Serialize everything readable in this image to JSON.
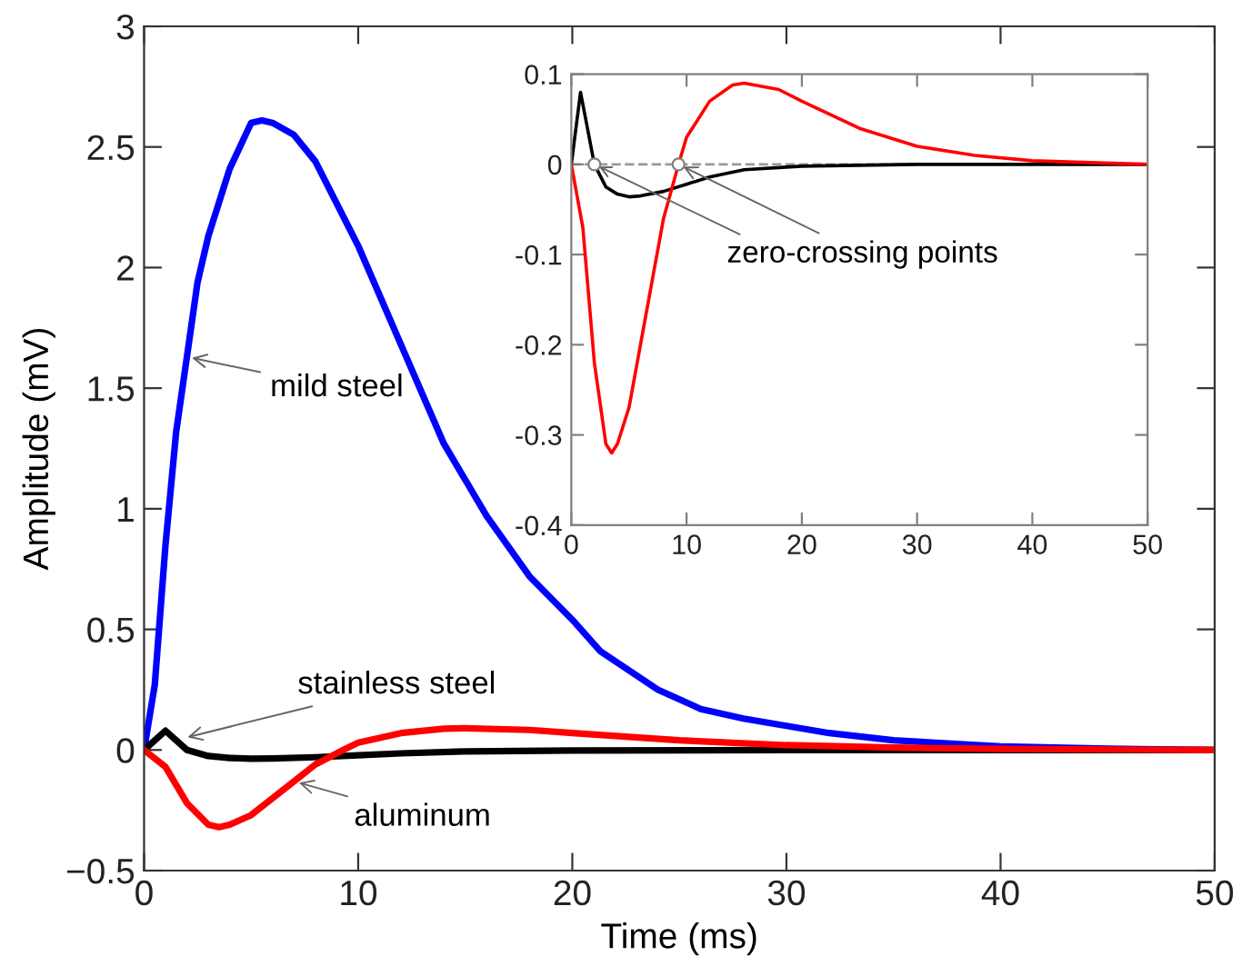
{
  "chart_data": [
    {
      "type": "line",
      "xlabel": "Time (ms)",
      "ylabel": "Amplitude (mV)",
      "xlim": [
        0,
        50
      ],
      "ylim": [
        -0.5,
        3
      ],
      "xticks": [
        0,
        10,
        20,
        30,
        40,
        50
      ],
      "yticks": [
        {
          "value": -0.5,
          "label": "−0.5"
        },
        0,
        0.5,
        1,
        1.5,
        2,
        2.5,
        3
      ],
      "grid": false,
      "series": [
        {
          "name": "mild steel",
          "color": "#0000ff",
          "x": [
            0,
            0.5,
            1,
            1.5,
            2,
            2.5,
            3,
            4,
            5,
            5.5,
            6,
            7,
            8,
            10,
            12,
            14,
            16,
            18,
            20,
            21.3,
            24,
            26,
            28,
            30,
            32,
            35,
            40,
            45,
            50
          ],
          "values": [
            0,
            0.27,
            0.85,
            1.32,
            1.63,
            1.94,
            2.13,
            2.41,
            2.6,
            2.61,
            2.6,
            2.55,
            2.44,
            2.09,
            1.68,
            1.27,
            0.97,
            0.72,
            0.54,
            0.41,
            0.25,
            0.17,
            0.13,
            0.1,
            0.07,
            0.04,
            0.015,
            0.005,
            0
          ]
        },
        {
          "name": "stainless steel",
          "color": "#000000",
          "x": [
            0,
            1,
            2,
            3,
            4,
            5,
            6,
            8,
            10,
            12,
            15,
            20,
            30,
            50
          ],
          "values": [
            0,
            0.08,
            0,
            -0.025,
            -0.033,
            -0.036,
            -0.035,
            -0.03,
            -0.022,
            -0.014,
            -0.006,
            -0.002,
            0,
            0
          ]
        },
        {
          "name": "aluminum",
          "color": "#ff0000",
          "x": [
            0,
            1,
            2,
            3,
            3.5,
            4,
            5,
            6,
            7,
            8,
            9.3,
            10,
            12,
            14,
            15,
            18,
            20,
            25,
            30,
            35,
            40,
            50
          ],
          "values": [
            0,
            -0.07,
            -0.22,
            -0.31,
            -0.32,
            -0.31,
            -0.27,
            -0.2,
            -0.13,
            -0.06,
            0,
            0.03,
            0.07,
            0.088,
            0.09,
            0.083,
            0.07,
            0.04,
            0.02,
            0.01,
            0.004,
            0
          ]
        }
      ],
      "legend": false
    },
    {
      "type": "line",
      "xlim": [
        0,
        50
      ],
      "ylim": [
        -0.4,
        0.1
      ],
      "xticks": [
        0,
        10,
        20,
        30,
        40,
        50
      ],
      "yticks": [
        -0.4,
        -0.3,
        -0.2,
        -0.1,
        0,
        0.1
      ],
      "grid": false,
      "legend": false,
      "series": [
        {
          "color": "#000000",
          "x": [
            0,
            0.8,
            2,
            3,
            4,
            5,
            6,
            8,
            10,
            12,
            15,
            20,
            30,
            50
          ],
          "values": [
            0,
            0.08,
            0,
            -0.025,
            -0.033,
            -0.036,
            -0.035,
            -0.03,
            -0.022,
            -0.014,
            -0.006,
            -0.002,
            0,
            0
          ]
        },
        {
          "color": "#ff0000",
          "x": [
            0,
            1,
            2,
            3,
            3.5,
            4,
            5,
            6,
            7,
            8,
            9.3,
            10,
            12,
            14,
            15,
            18,
            20,
            25,
            30,
            35,
            40,
            50
          ],
          "values": [
            0,
            -0.07,
            -0.22,
            -0.31,
            -0.32,
            -0.31,
            -0.27,
            -0.2,
            -0.13,
            -0.06,
            0,
            0.03,
            0.07,
            0.088,
            0.09,
            0.083,
            0.07,
            0.04,
            0.02,
            0.01,
            0.004,
            0
          ]
        },
        {
          "type": "scatter",
          "color": "#808080",
          "marker": "circle",
          "x": [
            2,
            9.3
          ],
          "values": [
            0,
            0
          ]
        }
      ],
      "ref_lines": [
        {
          "axis": "y",
          "value": 0,
          "color": "#999999",
          "line_style": "dashed"
        }
      ],
      "annotations": [
        {
          "text": "zero-crossing points",
          "x": 9.3,
          "y": 0
        }
      ]
    }
  ]
}
